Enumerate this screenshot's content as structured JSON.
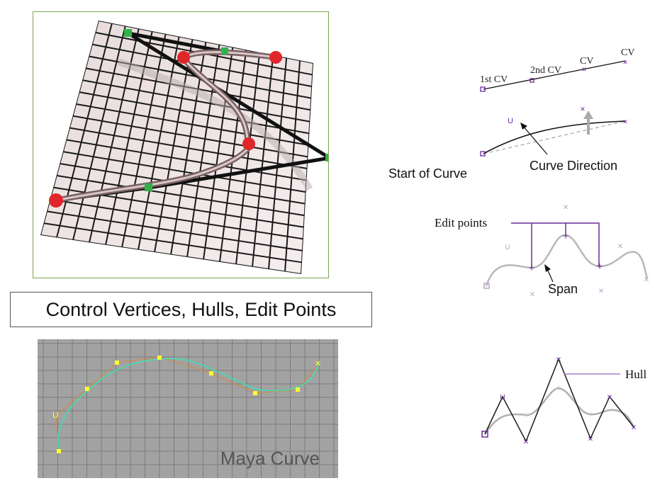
{
  "title": "Control Vertices, Hulls, Edit Points",
  "maya_panel": {
    "label": "Maya Curve"
  },
  "cv_diagram": {
    "first_cv": "1st CV",
    "second_cv": "2nd CV",
    "cv_label_1": "CV",
    "cv_label_2": "CV"
  },
  "direction_diagram": {
    "start_label": "Start of Curve",
    "direction_label": "Curve Direction"
  },
  "edit_points_diagram": {
    "edit_points_label": "Edit points",
    "span_label": "Span"
  },
  "hull_diagram": {
    "hull_label": "Hull"
  },
  "colors": {
    "cv_purple": "#6a2a9a",
    "hull_black": "#1a1a1a",
    "point_red": "#e0262a",
    "point_green": "#2fb24a",
    "maya_curve": "#3fe0b0",
    "maya_point": "#ffff33",
    "panel_border": "#7da44f"
  },
  "icons": [
    "cv-x-marker-icon",
    "cv-start-square-icon",
    "cv-u-marker-icon",
    "edit-point-plus-icon"
  ]
}
